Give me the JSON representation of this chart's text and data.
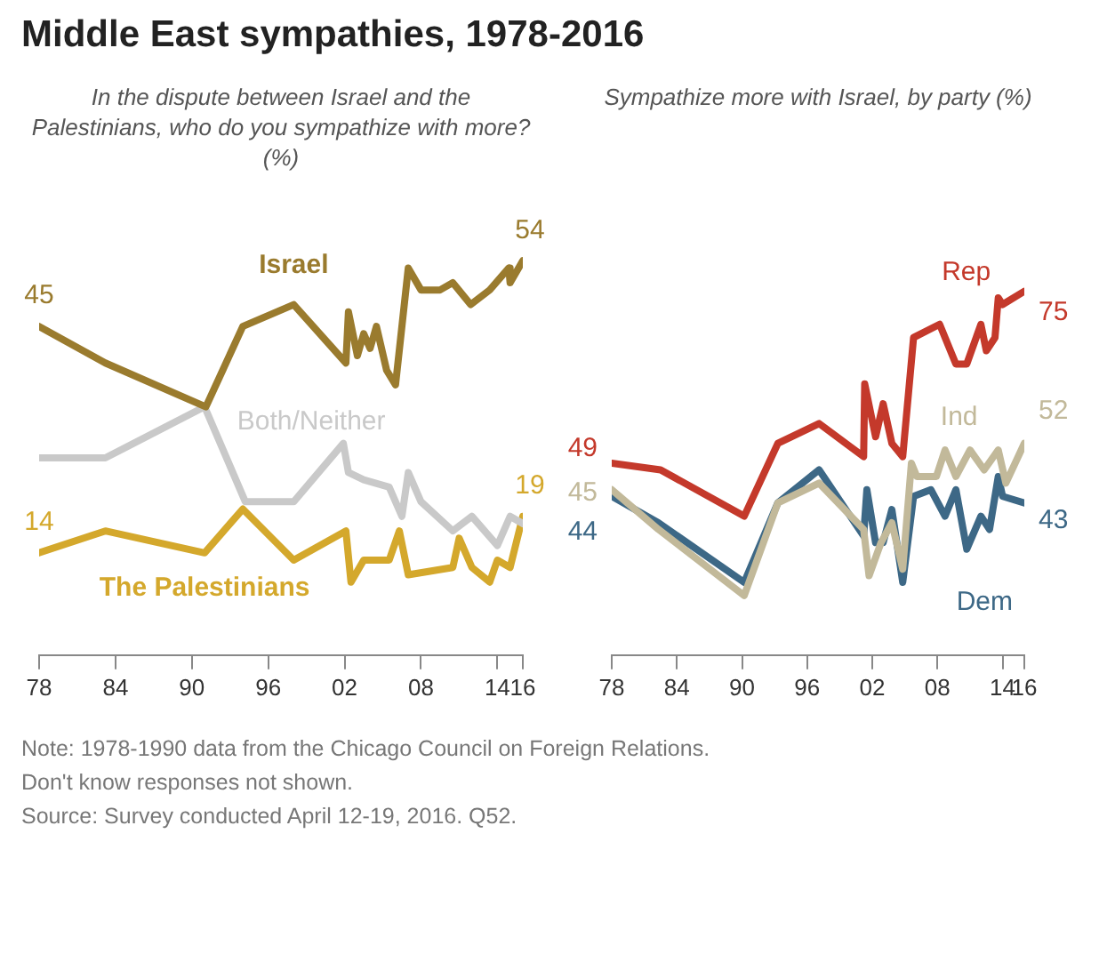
{
  "chart_data": [
    {
      "type": "line",
      "title": "Middle East sympathies, 1978-2016",
      "subtitle": "In the dispute between Israel and the Palestinians, who do you sympathize with more? (%)",
      "annotations": [
        "Note: 1978-1990 data from the Chicago Council on Foreign Relations.",
        "Don't know responses not shown.",
        "Source: Survey conducted April 12-19, 2016. Q52."
      ],
      "xlim": [
        1978,
        2016
      ],
      "xticks": [
        {
          "value": 1978,
          "label": "78"
        },
        {
          "value": 1984,
          "label": "84"
        },
        {
          "value": 1990,
          "label": "90"
        },
        {
          "value": 1996,
          "label": "96"
        },
        {
          "value": 2002,
          "label": "02"
        },
        {
          "value": 2008,
          "label": "08"
        },
        {
          "value": 2014,
          "label": "14"
        },
        {
          "value": 2016,
          "label": "16"
        }
      ],
      "tick_labels": "x",
      "marker": "none",
      "line_style": "solid",
      "series": [
        {
          "name": "Israel",
          "color": "#9a7b2e",
          "x": [
            1978,
            1983.2,
            1991.1,
            1994,
            1998,
            2002.1,
            2002.3,
            2003,
            2003.5,
            2004,
            2004.5,
            2005.3,
            2006,
            2007,
            2008,
            2009.5,
            2010.5,
            2011.9,
            2013.4,
            2014.9,
            2015,
            2016
          ],
          "values": [
            45,
            40,
            34,
            45,
            48,
            40,
            47,
            41,
            44,
            42,
            45,
            39,
            37,
            53,
            50,
            50,
            51,
            48,
            50,
            53,
            51,
            54
          ],
          "value_labels": [
            "45",
            null,
            null,
            null,
            null,
            null,
            null,
            null,
            null,
            null,
            null,
            null,
            null,
            null,
            null,
            null,
            null,
            null,
            null,
            null,
            null,
            "54"
          ]
        },
        {
          "name": "Both/Neither",
          "color": "#c9c9c9",
          "x": [
            1978,
            1983.2,
            1991,
            1994.2,
            1998,
            2001.9,
            2002.3,
            2003.5,
            2005.5,
            2006.5,
            2007,
            2008,
            2010.5,
            2012,
            2014,
            2015,
            2016
          ],
          "values": [
            27,
            27,
            34,
            21,
            21,
            29,
            25,
            24,
            23,
            19,
            25,
            21,
            17,
            19,
            15,
            19,
            18
          ]
        },
        {
          "name": "The Palestinians",
          "color": "#d4a82c",
          "x": [
            1978,
            1983.2,
            1991,
            1994,
            1998,
            2002.1,
            2002.5,
            2003.5,
            2005.5,
            2006.3,
            2007,
            2010.5,
            2011,
            2012,
            2013.4,
            2014,
            2015,
            2016
          ],
          "values": [
            14,
            17,
            14,
            20,
            13,
            17,
            10,
            13,
            13,
            17,
            11,
            12,
            16,
            12,
            10,
            13,
            12,
            19
          ],
          "value_labels": [
            "14",
            null,
            null,
            null,
            null,
            null,
            null,
            null,
            null,
            null,
            null,
            null,
            null,
            null,
            null,
            null,
            null,
            "19"
          ]
        }
      ]
    },
    {
      "type": "line",
      "subtitle": "Sympathize more with Israel, by party (%)",
      "xlim": [
        1978,
        2016
      ],
      "xticks": [
        {
          "value": 1978,
          "label": "78"
        },
        {
          "value": 1984,
          "label": "84"
        },
        {
          "value": 1990,
          "label": "90"
        },
        {
          "value": 1996,
          "label": "96"
        },
        {
          "value": 2002,
          "label": "02"
        },
        {
          "value": 2008,
          "label": "08"
        },
        {
          "value": 2014,
          "label": "14"
        },
        {
          "value": 2016,
          "label": "16"
        }
      ],
      "tick_labels": "x",
      "marker": "none",
      "line_style": "solid",
      "series": [
        {
          "name": "Rep",
          "color": "#c4392b",
          "x": [
            1978,
            1982.5,
            1990.2,
            1993.3,
            1997.1,
            2001.2,
            2001.3,
            2002.3,
            2003,
            2003.8,
            2004.8,
            2005.8,
            2008.2,
            2009.7,
            2010.7,
            2012,
            2012.5,
            2013.3,
            2013.6,
            2014,
            2016
          ],
          "values": [
            49,
            48,
            41,
            52,
            55,
            50,
            61,
            53,
            58,
            52,
            50,
            68,
            70,
            64,
            64,
            70,
            66,
            68,
            74,
            73,
            75
          ],
          "value_labels": [
            "49",
            null,
            null,
            null,
            null,
            null,
            null,
            null,
            null,
            null,
            null,
            null,
            null,
            null,
            null,
            null,
            null,
            null,
            null,
            null,
            "75"
          ]
        },
        {
          "name": "Ind",
          "color": "#c2b99a",
          "x": [
            1978,
            1982.3,
            1990.2,
            1993.3,
            1997.1,
            2001.2,
            2001.7,
            2002.8,
            2003.8,
            2004.8,
            2005.6,
            2006.1,
            2007.9,
            2008.7,
            2009.7,
            2011,
            2012.3,
            2013.6,
            2014.3,
            2016
          ],
          "values": [
            45,
            39,
            29,
            43,
            46,
            39,
            32,
            37,
            40,
            33,
            49,
            47,
            47,
            51,
            47,
            51,
            48,
            51,
            46,
            52
          ],
          "value_labels": [
            "45",
            null,
            null,
            null,
            null,
            null,
            null,
            null,
            null,
            null,
            null,
            null,
            null,
            null,
            null,
            null,
            null,
            null,
            null,
            "52"
          ]
        },
        {
          "name": "Dem",
          "color": "#3d6886",
          "x": [
            1978,
            1982.3,
            1990.2,
            1993.3,
            1997.1,
            2001.2,
            2001.5,
            2002.3,
            2003,
            2003.8,
            2004.8,
            2005.8,
            2007.4,
            2008.7,
            2009.7,
            2010.7,
            2012,
            2012.8,
            2013.6,
            2014,
            2016
          ],
          "values": [
            44,
            40,
            31,
            43,
            48,
            38,
            45,
            37,
            37,
            42,
            31,
            44,
            45,
            41,
            45,
            36,
            41,
            39,
            47,
            44,
            43
          ],
          "value_labels": [
            "44",
            null,
            null,
            null,
            null,
            null,
            null,
            null,
            null,
            null,
            null,
            null,
            null,
            null,
            null,
            null,
            null,
            null,
            null,
            null,
            "43"
          ]
        }
      ]
    }
  ]
}
